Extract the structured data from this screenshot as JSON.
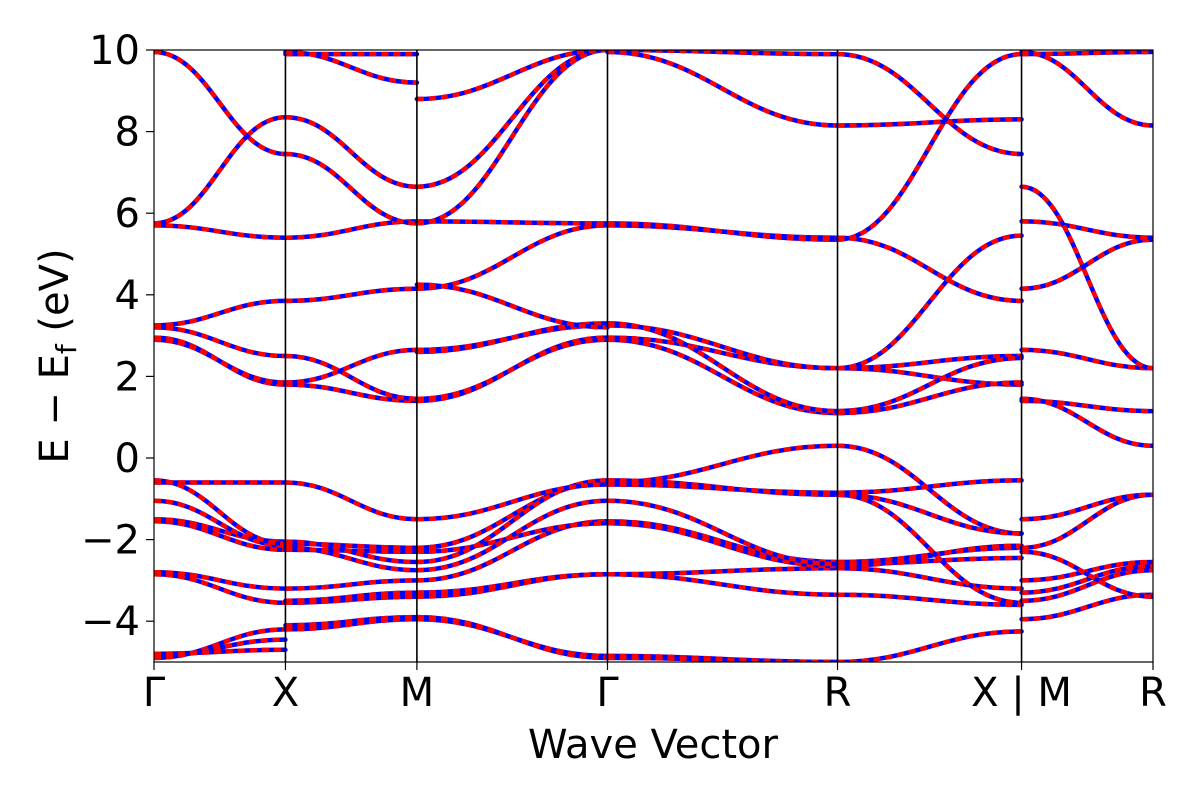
{
  "chart_data": {
    "type": "line",
    "title": "",
    "xlabel": "Wave Vector",
    "ylabel": {
      "prefix": "E − E",
      "sub": "f",
      "suffix": " (eV)"
    },
    "ylim": [
      -5,
      10
    ],
    "yticks": [
      10,
      8,
      6,
      4,
      2,
      0,
      -2,
      -4
    ],
    "ytick_labels": [
      "10",
      "8",
      "6",
      "4",
      "2",
      "0",
      "−2",
      "−4"
    ],
    "kpath_x": [
      0,
      1,
      2,
      3.45,
      5.2,
      6.6,
      7.6
    ],
    "kpath_labels": [
      "Γ",
      "X",
      "M",
      "Γ",
      "R",
      "X | M",
      "R"
    ],
    "colors": {
      "primary": "#ff0000",
      "overlay": "#0000ff"
    },
    "segments": [
      {
        "from": "Γ",
        "to": "X",
        "x0": 0,
        "x1": 1,
        "bands": [
          [
            -4.9,
            -4.2
          ],
          [
            -4.85,
            -4.45
          ],
          [
            -4.8,
            -4.7
          ],
          [
            -2.85,
            -3.55
          ],
          [
            -2.8,
            -3.2
          ],
          [
            -1.55,
            -2.25
          ],
          [
            -1.5,
            -2.05
          ],
          [
            -1.05,
            -2.15
          ],
          [
            -0.6,
            -0.6
          ],
          [
            -0.55,
            -2.1
          ],
          [
            2.95,
            1.8
          ],
          [
            2.9,
            1.85
          ],
          [
            3.2,
            2.5
          ],
          [
            3.25,
            3.85
          ],
          [
            5.7,
            5.4
          ],
          [
            5.75,
            8.35
          ],
          [
            9.95,
            7.45
          ]
        ]
      },
      {
        "from": "X",
        "to": "M",
        "x0": 1,
        "x1": 2,
        "bands": [
          [
            -4.2,
            -3.95
          ],
          [
            -4.1,
            -3.9
          ],
          [
            -3.55,
            -3.4
          ],
          [
            -3.5,
            -3.3
          ],
          [
            -3.2,
            -3.0
          ],
          [
            -2.25,
            -2.3
          ],
          [
            -2.2,
            -2.75
          ],
          [
            -2.1,
            -2.2
          ],
          [
            -2.05,
            -2.55
          ],
          [
            -0.6,
            -1.5
          ],
          [
            1.8,
            1.4
          ],
          [
            1.85,
            2.65
          ],
          [
            2.5,
            1.45
          ],
          [
            3.85,
            4.15
          ],
          [
            5.4,
            5.8
          ],
          [
            8.35,
            6.65
          ],
          [
            7.45,
            5.75
          ],
          [
            9.9,
            9.9
          ],
          [
            9.95,
            9.2
          ]
        ]
      },
      {
        "from": "M",
        "to": "Γ",
        "x0": 2,
        "x1": 3.45,
        "bands": [
          [
            -3.95,
            -4.85
          ],
          [
            -3.9,
            -4.9
          ],
          [
            -3.4,
            -2.85
          ],
          [
            -3.3,
            -2.85
          ],
          [
            -3.0,
            -1.55
          ],
          [
            -2.3,
            -1.6
          ],
          [
            -2.75,
            -1.05
          ],
          [
            -2.2,
            -0.6
          ],
          [
            -2.55,
            -0.55
          ],
          [
            -1.5,
            -0.65
          ],
          [
            1.4,
            2.95
          ],
          [
            1.45,
            2.9
          ],
          [
            2.65,
            3.25
          ],
          [
            2.6,
            3.3
          ],
          [
            4.15,
            5.7
          ],
          [
            4.25,
            3.2
          ],
          [
            5.8,
            5.75
          ],
          [
            6.65,
            10.0
          ],
          [
            5.75,
            10.0
          ],
          [
            8.8,
            10.0
          ]
        ]
      },
      {
        "from": "Γ",
        "to": "R",
        "x0": 3.45,
        "x1": 5.2,
        "bands": [
          [
            -4.85,
            -5.0
          ],
          [
            -4.9,
            -5.0
          ],
          [
            -2.85,
            -3.35
          ],
          [
            -2.85,
            -2.7
          ],
          [
            -1.55,
            -2.55
          ],
          [
            -1.6,
            -2.65
          ],
          [
            -1.05,
            -2.6
          ],
          [
            -0.6,
            0.3
          ],
          [
            -0.55,
            -0.9
          ],
          [
            -0.65,
            -0.85
          ],
          [
            2.95,
            2.2
          ],
          [
            2.9,
            1.1
          ],
          [
            3.25,
            2.2
          ],
          [
            3.3,
            1.15
          ],
          [
            5.7,
            5.4
          ],
          [
            5.75,
            5.35
          ],
          [
            9.95,
            8.15
          ],
          [
            10.0,
            9.9
          ]
        ]
      },
      {
        "from": "R",
        "to": "X",
        "x0": 5.2,
        "x1": 6.6,
        "bands": [
          [
            -5.0,
            -4.25
          ],
          [
            -3.35,
            -3.6
          ],
          [
            -2.7,
            -3.2
          ],
          [
            -2.55,
            -2.2
          ],
          [
            -2.6,
            -2.45
          ],
          [
            -2.65,
            -2.15
          ],
          [
            0.3,
            -1.85
          ],
          [
            -0.9,
            -1.85
          ],
          [
            -0.85,
            -0.55
          ],
          [
            -0.9,
            -3.55
          ],
          [
            2.2,
            1.8
          ],
          [
            1.1,
            1.85
          ],
          [
            2.2,
            2.5
          ],
          [
            1.15,
            2.45
          ],
          [
            5.4,
            3.85
          ],
          [
            5.35,
            9.9
          ],
          [
            8.15,
            8.3
          ],
          [
            9.9,
            7.45
          ],
          [
            2.2,
            5.45
          ]
        ]
      },
      {
        "from": "M",
        "to": "R",
        "x0": 6.6,
        "x1": 7.6,
        "bands": [
          [
            -3.95,
            -3.35
          ],
          [
            -3.5,
            -2.75
          ],
          [
            -3.3,
            -2.65
          ],
          [
            -3.0,
            -2.55
          ],
          [
            -2.3,
            -3.4
          ],
          [
            -2.2,
            -0.9
          ],
          [
            -1.5,
            -0.9
          ],
          [
            1.4,
            1.15
          ],
          [
            1.45,
            0.3
          ],
          [
            2.65,
            2.2
          ],
          [
            4.15,
            5.35
          ],
          [
            5.8,
            5.4
          ],
          [
            6.65,
            2.2
          ],
          [
            9.9,
            9.95
          ],
          [
            9.95,
            8.15
          ]
        ]
      }
    ]
  }
}
